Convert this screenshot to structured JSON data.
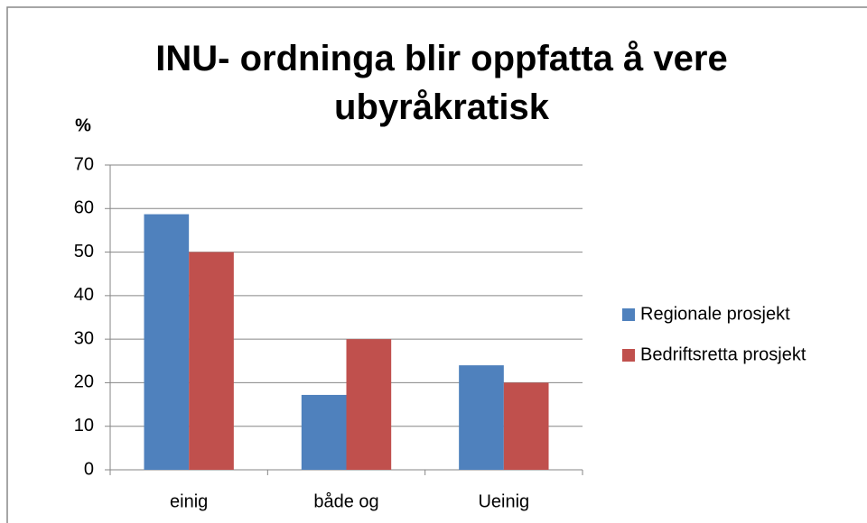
{
  "chart_data": {
    "type": "bar",
    "title": "INU- ordninga blir oppfatta å vere ubyråkratisk",
    "y_label": "%",
    "categories": [
      "einig",
      "både og",
      "Ueinig"
    ],
    "series": [
      {
        "name": "Regionale prosjekt",
        "color": "#4f81bd",
        "values": [
          58.7,
          17.2,
          24
        ]
      },
      {
        "name": "Bedriftsretta prosjekt",
        "color": "#c0504d",
        "values": [
          50,
          30,
          20
        ]
      }
    ],
    "ylim": [
      0,
      70
    ],
    "yticks": [
      0,
      10,
      20,
      30,
      40,
      50,
      60,
      70
    ],
    "grid": true,
    "legend": "right"
  }
}
